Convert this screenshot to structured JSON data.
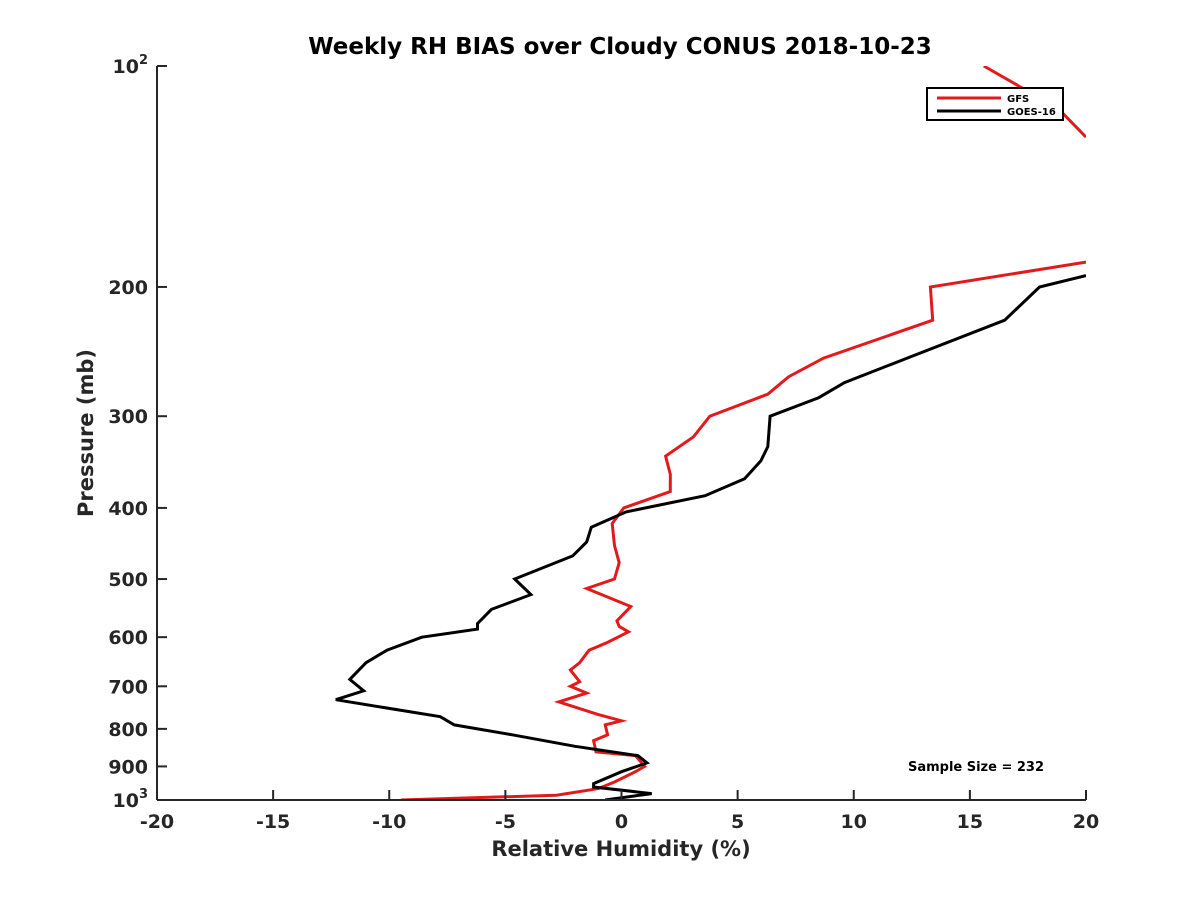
{
  "chart_data": {
    "type": "line",
    "title": "Weekly RH BIAS over Cloudy CONUS 2018-10-23",
    "xlabel": "Relative Humidity (%)",
    "ylabel": "Pressure (mb)",
    "xlim": [
      -20,
      20
    ],
    "ylim": [
      100,
      1000
    ],
    "yscale": "log",
    "y_reversed": true,
    "grid": false,
    "legend_position": "top-right",
    "x_ticks": [
      "-20",
      "-15",
      "-10",
      "-5",
      "0",
      "5",
      "10",
      "15",
      "20"
    ],
    "y_ticks": [
      {
        "value": 100,
        "base": "10",
        "exp": "2"
      },
      {
        "value": 200,
        "label": "200"
      },
      {
        "value": 300,
        "label": "300"
      },
      {
        "value": 400,
        "label": "400"
      },
      {
        "value": 500,
        "label": "500"
      },
      {
        "value": 600,
        "label": "600"
      },
      {
        "value": 700,
        "label": "700"
      },
      {
        "value": 800,
        "label": "800"
      },
      {
        "value": 900,
        "label": "900"
      },
      {
        "value": 1000,
        "base": "10",
        "exp": "3"
      }
    ],
    "annotation": "Sample Size = 232",
    "series": [
      {
        "name": "GFS",
        "color": "#e31a1c",
        "segments": [
          [
            {
              "x": 15.6,
              "y": 100
            },
            {
              "x": 17.0,
              "y": 106
            },
            {
              "x": 19.0,
              "y": 116
            },
            {
              "x": 20.0,
              "y": 125
            }
          ],
          [
            {
              "x": 20.0,
              "y": 185
            },
            {
              "x": 13.3,
              "y": 200
            },
            {
              "x": 13.4,
              "y": 222
            },
            {
              "x": 8.7,
              "y": 250
            },
            {
              "x": 7.2,
              "y": 265
            },
            {
              "x": 6.3,
              "y": 280
            },
            {
              "x": 3.8,
              "y": 300
            },
            {
              "x": 3.1,
              "y": 320
            },
            {
              "x": 1.9,
              "y": 340
            },
            {
              "x": 2.1,
              "y": 360
            },
            {
              "x": 2.1,
              "y": 380
            },
            {
              "x": 0.1,
              "y": 400
            },
            {
              "x": -0.4,
              "y": 420
            },
            {
              "x": -0.3,
              "y": 450
            },
            {
              "x": -0.1,
              "y": 475
            },
            {
              "x": -0.3,
              "y": 500
            },
            {
              "x": -1.5,
              "y": 515
            },
            {
              "x": 0.4,
              "y": 545
            },
            {
              "x": -0.2,
              "y": 570
            },
            {
              "x": -0.1,
              "y": 580
            },
            {
              "x": 0.3,
              "y": 590
            },
            {
              "x": -0.6,
              "y": 610
            },
            {
              "x": -1.4,
              "y": 625
            },
            {
              "x": -1.8,
              "y": 650
            },
            {
              "x": -2.2,
              "y": 665
            },
            {
              "x": -1.8,
              "y": 690
            },
            {
              "x": -2.2,
              "y": 700
            },
            {
              "x": -1.5,
              "y": 715
            },
            {
              "x": -2.7,
              "y": 735
            },
            {
              "x": -1.0,
              "y": 765
            },
            {
              "x": 0.0,
              "y": 780
            },
            {
              "x": -0.7,
              "y": 790
            },
            {
              "x": -0.6,
              "y": 815
            },
            {
              "x": -1.2,
              "y": 830
            },
            {
              "x": -1.1,
              "y": 860
            },
            {
              "x": 0.6,
              "y": 870
            },
            {
              "x": 1.0,
              "y": 900
            },
            {
              "x": 0.6,
              "y": 915
            },
            {
              "x": -0.3,
              "y": 945
            },
            {
              "x": -1.0,
              "y": 965
            },
            {
              "x": -2.8,
              "y": 985
            },
            {
              "x": -9.5,
              "y": 1000
            }
          ]
        ]
      },
      {
        "name": "GOES-16",
        "color": "#000000",
        "segments": [
          [
            {
              "x": 20.0,
              "y": 193
            },
            {
              "x": 18.0,
              "y": 200
            },
            {
              "x": 16.5,
              "y": 222
            },
            {
              "x": 12.3,
              "y": 250
            },
            {
              "x": 9.6,
              "y": 270
            },
            {
              "x": 8.5,
              "y": 283
            },
            {
              "x": 6.4,
              "y": 300
            },
            {
              "x": 6.3,
              "y": 330
            },
            {
              "x": 6.0,
              "y": 345
            },
            {
              "x": 5.3,
              "y": 365
            },
            {
              "x": 3.6,
              "y": 385
            },
            {
              "x": 0.2,
              "y": 405
            },
            {
              "x": -1.3,
              "y": 425
            },
            {
              "x": -1.5,
              "y": 445
            },
            {
              "x": -2.1,
              "y": 465
            },
            {
              "x": -4.6,
              "y": 500
            },
            {
              "x": -3.9,
              "y": 525
            },
            {
              "x": -5.6,
              "y": 550
            },
            {
              "x": -6.2,
              "y": 575
            },
            {
              "x": -6.2,
              "y": 585
            },
            {
              "x": -8.6,
              "y": 600
            },
            {
              "x": -10.1,
              "y": 625
            },
            {
              "x": -11.0,
              "y": 650
            },
            {
              "x": -11.7,
              "y": 685
            },
            {
              "x": -11.1,
              "y": 710
            },
            {
              "x": -12.3,
              "y": 730
            },
            {
              "x": -7.8,
              "y": 770
            },
            {
              "x": -7.2,
              "y": 790
            },
            {
              "x": -4.7,
              "y": 815
            },
            {
              "x": -2.0,
              "y": 845
            },
            {
              "x": 0.7,
              "y": 870
            },
            {
              "x": 1.1,
              "y": 890
            },
            {
              "x": 0.0,
              "y": 915
            },
            {
              "x": -1.2,
              "y": 950
            },
            {
              "x": -1.2,
              "y": 960
            },
            {
              "x": 1.3,
              "y": 980
            },
            {
              "x": -0.7,
              "y": 1000
            }
          ]
        ]
      }
    ]
  }
}
